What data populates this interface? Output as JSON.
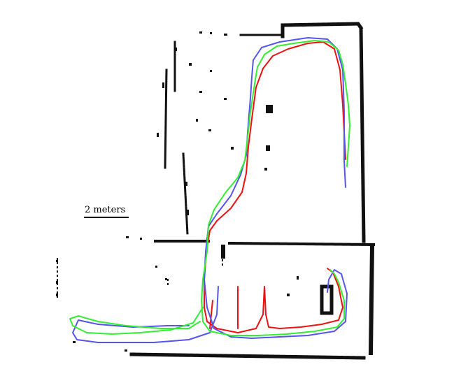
{
  "scale_bar": {
    "label": "2 meters"
  },
  "colors": {
    "walls": "#111111",
    "trajectory_red": "#ee1111",
    "trajectory_blue": "#5555ee",
    "trajectory_green": "#33ee33"
  }
}
